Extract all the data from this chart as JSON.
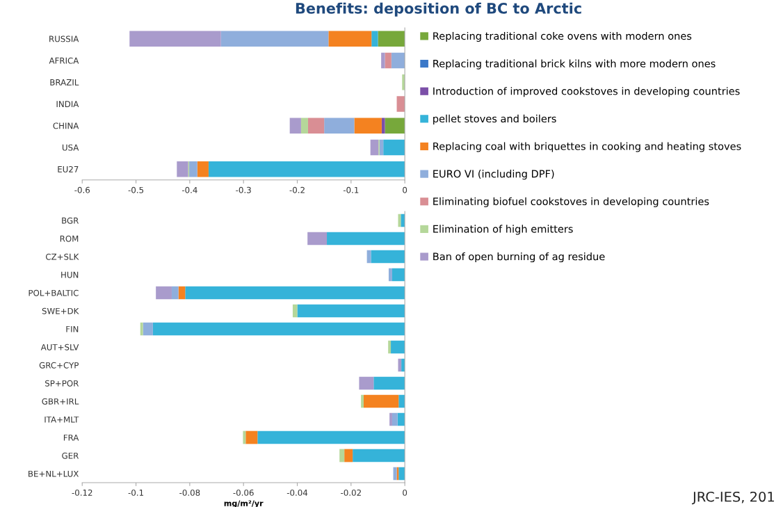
{
  "chart_data": [
    {
      "type": "bar",
      "orientation": "horizontal",
      "stacked": true,
      "title": "Benefits: deposition of BC to Arctic",
      "legend": "right",
      "categories": [
        "RUSSIA",
        "AFRICA",
        "BRAZIL",
        "INDIA",
        "CHINA",
        "USA",
        "EU27"
      ],
      "xlim": [
        -0.6,
        0
      ],
      "xticks": [
        -0.6,
        -0.5,
        -0.4,
        -0.3,
        -0.2,
        -0.1,
        0
      ],
      "series": [
        {
          "name": "Replacing traditional coke ovens with modern ones",
          "color": "#77a83b",
          "values": [
            -0.05,
            null,
            null,
            null,
            -0.037,
            null,
            null
          ]
        },
        {
          "name": "Replacing traditional brick kilns with more modern ones",
          "color": "#3a78c8",
          "values": [
            null,
            null,
            null,
            null,
            null,
            null,
            null
          ]
        },
        {
          "name": "Introduction of improved cookstoves in developing countries",
          "color": "#7b4fa8",
          "values": [
            null,
            null,
            null,
            null,
            -0.006,
            null,
            null
          ]
        },
        {
          "name": "pellet stoves and boilers",
          "color": "#35b3d9",
          "values": [
            -0.012,
            null,
            null,
            null,
            null,
            -0.04,
            -0.365
          ]
        },
        {
          "name": "Replacing coal with briquettes in cooking and heating stoves",
          "color": "#f48220",
          "values": [
            -0.08,
            null,
            null,
            null,
            -0.051,
            null,
            -0.021
          ]
        },
        {
          "name": "EURO VI (including DPF)",
          "color": "#8faedc",
          "values": [
            -0.2,
            -0.025,
            null,
            null,
            -0.056,
            -0.007,
            -0.015
          ]
        },
        {
          "name": "Eliminating biofuel cookstoves in developing countries",
          "color": "#d98e94",
          "values": [
            null,
            -0.012,
            null,
            -0.015,
            -0.03,
            null,
            null
          ]
        },
        {
          "name": "Elimination of high emitters",
          "color": "#b5d79a",
          "values": [
            null,
            null,
            -0.005,
            null,
            -0.013,
            -0.002,
            -0.002
          ]
        },
        {
          "name": "Ban of open burning of ag residue",
          "color": "#a99bcc",
          "values": [
            -0.17,
            -0.007,
            null,
            null,
            -0.021,
            -0.015,
            -0.021
          ]
        }
      ]
    },
    {
      "type": "bar",
      "orientation": "horizontal",
      "stacked": true,
      "xlabel": "mg/m²/yr",
      "annotations": [
        "JRC-IES, 201"
      ],
      "categories": [
        "BGR",
        "ROM",
        "CZ+SLK",
        "HUN",
        "POL+BALTIC",
        "SWE+DK",
        "FIN",
        "AUT+SLV",
        "GRC+CYP",
        "SP+POR",
        "GBR+IRL",
        "ITA+MLT",
        "FRA",
        "GER",
        "BE+NL+LUX"
      ],
      "xlim": [
        -0.12,
        0
      ],
      "xticks": [
        -0.12,
        -0.1,
        -0.08,
        -0.06,
        -0.04,
        -0.02,
        0
      ],
      "series": [
        {
          "color": "#35b3d9",
          "values": [
            -0.0015,
            -0.029,
            -0.0126,
            -0.0047,
            -0.0817,
            -0.04,
            -0.0937,
            -0.0052,
            -0.0013,
            -0.0116,
            -0.0023,
            -0.0027,
            -0.0548,
            -0.0194,
            -0.0023
          ]
        },
        {
          "color": "#f48220",
          "values": [
            null,
            null,
            null,
            null,
            -0.0025,
            null,
            null,
            null,
            null,
            null,
            -0.013,
            null,
            -0.0044,
            -0.0031,
            -0.0007
          ]
        },
        {
          "color": "#8faedc",
          "values": [
            null,
            null,
            -0.0015,
            -0.0013,
            -0.0025,
            null,
            -0.0037,
            null,
            null,
            null,
            null,
            -0.002,
            null,
            null,
            -0.0013
          ]
        },
        {
          "color": "#b5d79a",
          "values": [
            -0.001,
            null,
            null,
            null,
            null,
            -0.0017,
            -0.001,
            -0.001,
            null,
            null,
            -0.001,
            null,
            -0.001,
            -0.0018,
            null
          ]
        },
        {
          "color": "#a99bcc",
          "values": [
            null,
            -0.0072,
            null,
            null,
            -0.0059,
            null,
            null,
            null,
            -0.0012,
            -0.0054,
            null,
            -0.001,
            null,
            null,
            null
          ]
        }
      ]
    }
  ]
}
